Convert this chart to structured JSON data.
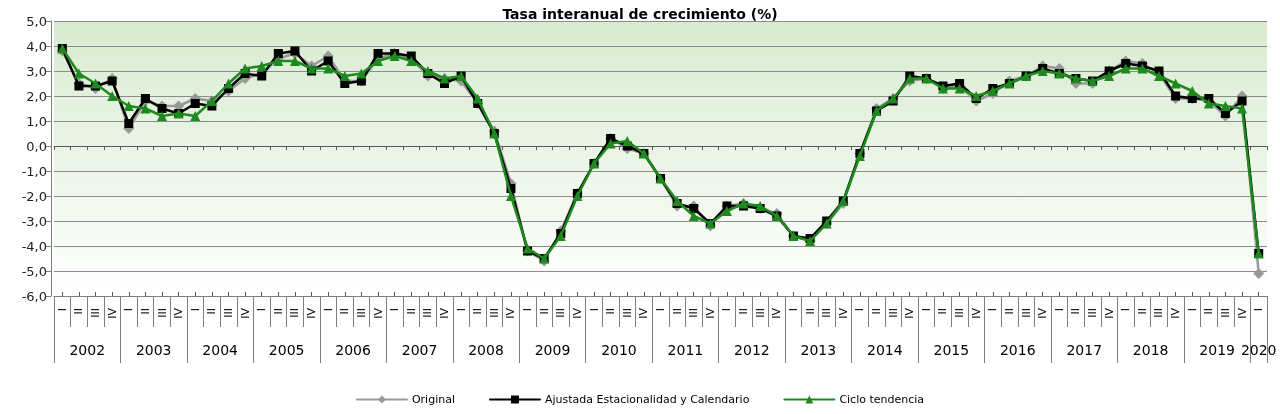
{
  "chart_data": {
    "type": "line",
    "title": "Tasa interanual de crecimiento (%)",
    "categories": [
      "I",
      "II",
      "III",
      "IV",
      "I",
      "II",
      "III",
      "IV",
      "I",
      "II",
      "III",
      "IV",
      "I",
      "II",
      "III",
      "IV",
      "I",
      "II",
      "III",
      "IV",
      "I",
      "II",
      "III",
      "IV",
      "I",
      "II",
      "III",
      "IV",
      "I",
      "II",
      "III",
      "IV",
      "I",
      "II",
      "III",
      "IV",
      "I",
      "II",
      "III",
      "IV",
      "I",
      "II",
      "III",
      "IV",
      "I",
      "II",
      "III",
      "IV",
      "I",
      "II",
      "III",
      "IV",
      "I",
      "II",
      "III",
      "IV",
      "I",
      "II",
      "III",
      "IV",
      "I",
      "II",
      "III",
      "IV",
      "I",
      "II",
      "III",
      "IV",
      "I",
      "II",
      "III",
      "IV",
      "I"
    ],
    "series": [
      {
        "name": "Original",
        "color": "#999999",
        "marker": "diamond",
        "values": [
          3.8,
          2.5,
          2.3,
          2.7,
          0.7,
          1.8,
          1.6,
          1.6,
          1.9,
          1.8,
          2.2,
          2.7,
          2.9,
          3.5,
          3.7,
          3.2,
          3.6,
          2.6,
          2.6,
          3.5,
          3.7,
          3.5,
          2.8,
          2.7,
          2.6,
          1.7,
          0.6,
          -1.5,
          -4.2,
          -4.6,
          -3.4,
          -1.9,
          -0.7,
          0.3,
          -0.1,
          -0.3,
          -1.3,
          -2.4,
          -2.4,
          -3.2,
          -2.4,
          -2.3,
          -2.5,
          -2.7,
          -3.6,
          -3.8,
          -3.1,
          -2.3,
          -0.3,
          1.5,
          1.9,
          2.6,
          2.7,
          2.3,
          2.4,
          1.8,
          2.1,
          2.6,
          2.8,
          3.2,
          3.1,
          2.5,
          2.5,
          3.0,
          3.4,
          3.3,
          2.9,
          1.9,
          1.9,
          1.8,
          1.2,
          2.0,
          -5.1
        ]
      },
      {
        "name": "Ajustada Estacionalidad y Calendario",
        "color": "#000000",
        "marker": "square",
        "values": [
          3.9,
          2.4,
          2.4,
          2.6,
          0.9,
          1.9,
          1.5,
          1.3,
          1.7,
          1.6,
          2.3,
          2.9,
          2.8,
          3.7,
          3.8,
          3.0,
          3.4,
          2.5,
          2.6,
          3.7,
          3.7,
          3.6,
          2.9,
          2.5,
          2.8,
          1.7,
          0.5,
          -1.7,
          -4.2,
          -4.5,
          -3.5,
          -1.9,
          -0.7,
          0.3,
          0.0,
          -0.3,
          -1.3,
          -2.3,
          -2.5,
          -3.1,
          -2.4,
          -2.4,
          -2.5,
          -2.8,
          -3.6,
          -3.7,
          -3.0,
          -2.2,
          -0.3,
          1.4,
          1.8,
          2.8,
          2.7,
          2.4,
          2.5,
          1.9,
          2.3,
          2.5,
          2.8,
          3.1,
          2.9,
          2.7,
          2.6,
          3.0,
          3.3,
          3.2,
          3.0,
          2.0,
          1.9,
          1.9,
          1.3,
          1.8,
          -4.3
        ]
      },
      {
        "name": "Ciclo tendencia",
        "color": "#1e8a1e",
        "marker": "triangle",
        "values": [
          3.9,
          2.9,
          2.5,
          2.0,
          1.6,
          1.5,
          1.2,
          1.3,
          1.2,
          1.8,
          2.5,
          3.1,
          3.2,
          3.4,
          3.4,
          3.1,
          3.1,
          2.8,
          2.9,
          3.4,
          3.6,
          3.4,
          3.0,
          2.7,
          2.8,
          1.9,
          0.5,
          -2.0,
          -4.1,
          -4.5,
          -3.6,
          -2.0,
          -0.7,
          0.1,
          0.2,
          -0.3,
          -1.3,
          -2.2,
          -2.8,
          -3.1,
          -2.6,
          -2.3,
          -2.4,
          -2.8,
          -3.6,
          -3.8,
          -3.1,
          -2.2,
          -0.4,
          1.4,
          1.9,
          2.7,
          2.7,
          2.3,
          2.3,
          2.0,
          2.2,
          2.5,
          2.8,
          3.0,
          2.9,
          2.7,
          2.6,
          2.8,
          3.1,
          3.1,
          2.8,
          2.5,
          2.2,
          1.7,
          1.6,
          1.5,
          -4.3
        ]
      }
    ],
    "ylim": [
      -6,
      5
    ],
    "yticks": [
      {
        "value": -6,
        "label": "-6,0"
      },
      {
        "value": -5,
        "label": "-5,0"
      },
      {
        "value": -4,
        "label": "-4,0"
      },
      {
        "value": -3,
        "label": "-3,0"
      },
      {
        "value": -2,
        "label": "-2,0"
      },
      {
        "value": -1,
        "label": "-1,0"
      },
      {
        "value": 0,
        "label": "0,0"
      },
      {
        "value": 1,
        "label": "1,0"
      },
      {
        "value": 2,
        "label": "2,0"
      },
      {
        "value": 3,
        "label": "3,0"
      },
      {
        "value": 4,
        "label": "4,0"
      },
      {
        "value": 5,
        "label": "5,0"
      }
    ],
    "x2lim": [
      2001.5,
      2019.75
    ],
    "x2ticks": [
      {
        "value": 2001.5,
        "label": null
      },
      2002,
      {
        "value": 2002.5,
        "label": null
      },
      2003,
      {
        "value": 2003.5,
        "label": null
      },
      2004,
      {
        "value": 2004.5,
        "label": null
      },
      2005,
      {
        "value": 2005.5,
        "label": null
      },
      2006,
      {
        "value": 2006.5,
        "label": null
      },
      2007,
      {
        "value": 2007.5,
        "label": null
      },
      2008,
      {
        "value": 2008.5,
        "label": null
      },
      2009,
      {
        "value": 2009.5,
        "label": null
      },
      2010,
      {
        "value": 2010.5,
        "label": null
      },
      2011,
      {
        "value": 2011.5,
        "label": null
      },
      2012,
      {
        "value": 2012.5,
        "label": null
      },
      2013,
      {
        "value": 2013.5,
        "label": null
      },
      2014,
      {
        "value": 2014.5,
        "label": null
      },
      2015,
      {
        "value": 2015.5,
        "label": null
      },
      2016,
      {
        "value": 2016.5,
        "label": null
      },
      2017,
      {
        "value": 2017.5,
        "label": null
      },
      2018,
      {
        "value": 2018.5,
        "label": null
      },
      2019,
      {
        "value": 2019.5,
        "label": null
      },
      {
        "value": 2019.625,
        "label": "2020"
      },
      {
        "value": 2019.75,
        "label": null
      }
    ],
    "grid": "y",
    "legend": "bottom"
  }
}
